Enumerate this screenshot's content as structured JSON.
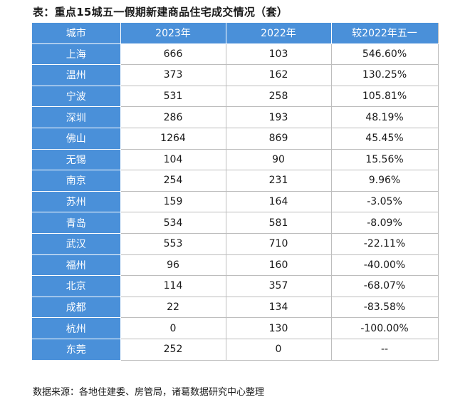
{
  "title": "表：重点15城五一假期新建商品住宅成交情况（套）",
  "table": {
    "headers": [
      "城市",
      "2023年",
      "2022年",
      "较2022年五一"
    ],
    "rows": [
      {
        "city": "上海",
        "y2023": "666",
        "y2022": "103",
        "change": "546.60%"
      },
      {
        "city": "温州",
        "y2023": "373",
        "y2022": "162",
        "change": "130.25%"
      },
      {
        "city": "宁波",
        "y2023": "531",
        "y2022": "258",
        "change": "105.81%"
      },
      {
        "city": "深圳",
        "y2023": "286",
        "y2022": "193",
        "change": "48.19%"
      },
      {
        "city": "佛山",
        "y2023": "1264",
        "y2022": "869",
        "change": "45.45%"
      },
      {
        "city": "无锡",
        "y2023": "104",
        "y2022": "90",
        "change": "15.56%"
      },
      {
        "city": "南京",
        "y2023": "254",
        "y2022": "231",
        "change": "9.96%"
      },
      {
        "city": "苏州",
        "y2023": "159",
        "y2022": "164",
        "change": "-3.05%"
      },
      {
        "city": "青岛",
        "y2023": "534",
        "y2022": "581",
        "change": "-8.09%"
      },
      {
        "city": "武汉",
        "y2023": "553",
        "y2022": "710",
        "change": "-22.11%"
      },
      {
        "city": "福州",
        "y2023": "96",
        "y2022": "160",
        "change": "-40.00%"
      },
      {
        "city": "北京",
        "y2023": "114",
        "y2022": "357",
        "change": "-68.07%"
      },
      {
        "city": "成都",
        "y2023": "22",
        "y2022": "134",
        "change": "-83.58%"
      },
      {
        "city": "杭州",
        "y2023": "0",
        "y2022": "130",
        "change": "-100.00%"
      },
      {
        "city": "东莞",
        "y2023": "252",
        "y2022": "0",
        "change": "--"
      }
    ]
  },
  "source": "数据来源：各地住建委、房管局，诸葛数据研究中心整理",
  "colors": {
    "header_bg": "#4a90d9",
    "city_bg": "#4a90d9",
    "cell_bg": "#ffffff",
    "grid": "#bdbdbd"
  }
}
